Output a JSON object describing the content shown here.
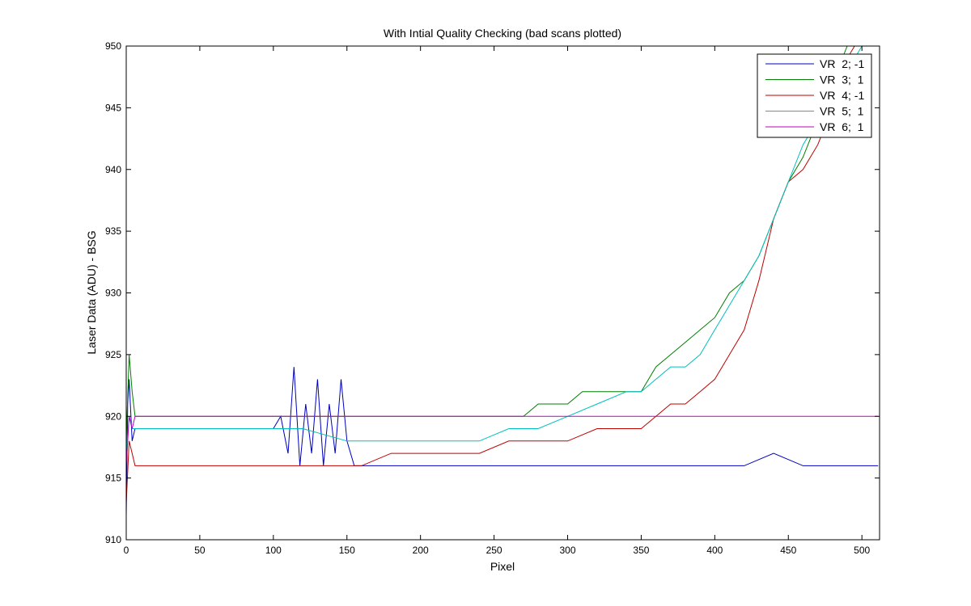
{
  "chart_data": {
    "type": "line",
    "title": "With Intial Quality Checking (bad scans plotted)",
    "xlabel": "Pixel",
    "ylabel": "Laser Data (ADU) - BSG",
    "xlim": [
      0,
      512
    ],
    "ylim": [
      910,
      950
    ],
    "xticks": [
      0,
      50,
      100,
      150,
      200,
      250,
      300,
      350,
      400,
      450,
      500
    ],
    "yticks": [
      910,
      915,
      920,
      925,
      930,
      935,
      940,
      945,
      950
    ],
    "grid": false,
    "legend_position": "top-right",
    "series": [
      {
        "name": "VR  2; -1",
        "color": "#0000bf",
        "x": [
          0,
          1,
          2,
          4,
          6,
          10,
          20,
          40,
          60,
          80,
          95,
          100,
          105,
          110,
          114,
          118,
          122,
          126,
          130,
          134,
          138,
          142,
          146,
          150,
          155,
          160,
          170,
          180,
          190,
          200,
          220,
          240,
          260,
          280,
          300,
          320,
          340,
          360,
          380,
          400,
          420,
          440,
          460,
          480,
          500,
          511
        ],
        "values": [
          912,
          921,
          923,
          918,
          919,
          919,
          919,
          919,
          919,
          919,
          919,
          919,
          920,
          917,
          924,
          916,
          921,
          917,
          923,
          916,
          921,
          917,
          923,
          918,
          916,
          916,
          916,
          916,
          916,
          916,
          916,
          916,
          916,
          916,
          916,
          916,
          916,
          916,
          916,
          916,
          916,
          917,
          916,
          916,
          916,
          916
        ]
      },
      {
        "name": "VR  3;  1",
        "color": "#007f00",
        "x": [
          0,
          2,
          4,
          6,
          10,
          30,
          60,
          90,
          120,
          150,
          180,
          210,
          240,
          270,
          280,
          290,
          300,
          310,
          320,
          330,
          340,
          350,
          360,
          370,
          380,
          390,
          400,
          410,
          420,
          430,
          440,
          450,
          460,
          470,
          480,
          490,
          500,
          505,
          511
        ],
        "values": [
          918,
          925,
          922,
          920,
          920,
          920,
          920,
          920,
          920,
          920,
          920,
          920,
          920,
          920,
          921,
          921,
          921,
          922,
          922,
          922,
          922,
          922,
          924,
          925,
          926,
          927,
          928,
          930,
          931,
          933,
          936,
          939,
          941,
          944,
          947,
          950,
          951,
          952,
          952
        ]
      },
      {
        "name": "VR  4; -1",
        "color": "#bf0000",
        "x": [
          0,
          2,
          4,
          6,
          10,
          20,
          40,
          60,
          80,
          100,
          120,
          140,
          160,
          180,
          200,
          220,
          240,
          260,
          280,
          300,
          320,
          340,
          350,
          360,
          370,
          380,
          390,
          400,
          410,
          420,
          430,
          440,
          450,
          460,
          470,
          480,
          490,
          500,
          511
        ],
        "values": [
          913,
          918,
          917,
          916,
          916,
          916,
          916,
          916,
          916,
          916,
          916,
          916,
          916,
          917,
          917,
          917,
          917,
          918,
          918,
          918,
          919,
          919,
          919,
          920,
          921,
          921,
          922,
          923,
          925,
          927,
          931,
          936,
          939,
          940,
          942,
          945,
          949,
          951,
          952
        ]
      },
      {
        "name": "VR  5;  1",
        "color": "#00bfbf",
        "x": [
          0,
          2,
          4,
          6,
          10,
          30,
          60,
          90,
          120,
          150,
          180,
          210,
          240,
          260,
          280,
          300,
          320,
          340,
          350,
          360,
          370,
          380,
          390,
          400,
          410,
          420,
          430,
          440,
          450,
          460,
          470,
          480,
          490,
          500,
          505,
          511
        ],
        "values": [
          917,
          920,
          919,
          919,
          919,
          919,
          919,
          919,
          919,
          918,
          918,
          918,
          918,
          919,
          919,
          920,
          921,
          922,
          922,
          923,
          924,
          924,
          925,
          927,
          929,
          931,
          933,
          936,
          939,
          942,
          944,
          946,
          948,
          950,
          950,
          950
        ]
      },
      {
        "name": "VR  6;  1",
        "color": "#bf00bf",
        "x": [
          0,
          2,
          4,
          6,
          10,
          50,
          100,
          150,
          200,
          250,
          300,
          350,
          380,
          400,
          450,
          500,
          511
        ],
        "values": [
          916,
          920,
          919,
          920,
          920,
          920,
          920,
          920,
          920,
          920,
          920,
          920,
          920,
          920,
          920,
          920,
          920
        ]
      }
    ]
  }
}
